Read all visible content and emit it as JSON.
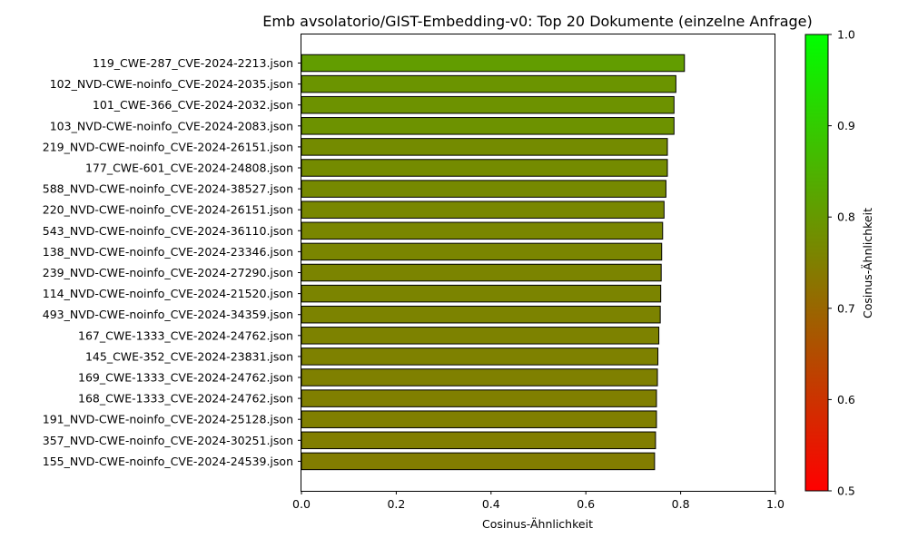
{
  "chart_data": {
    "type": "bar",
    "orientation": "horizontal",
    "title": "Emb avsolatorio/GIST-Embedding-v0: Top 20 Dokumente (einzelne Anfrage)",
    "xlabel": "Cosinus-Ähnlichkeit",
    "ylabel": "",
    "xlim": [
      0.0,
      1.0
    ],
    "x_ticks": [
      "0.0",
      "0.2",
      "0.4",
      "0.6",
      "0.8",
      "1.0"
    ],
    "grid": false,
    "categories": [
      "119_CWE-287_CVE-2024-2213.json",
      "102_NVD-CWE-noinfo_CVE-2024-2035.json",
      "101_CWE-366_CVE-2024-2032.json",
      "103_NVD-CWE-noinfo_CVE-2024-2083.json",
      "219_NVD-CWE-noinfo_CVE-2024-26151.json",
      "177_CWE-601_CVE-2024-24808.json",
      "588_NVD-CWE-noinfo_CVE-2024-38527.json",
      "220_NVD-CWE-noinfo_CVE-2024-26151.json",
      "543_NVD-CWE-noinfo_CVE-2024-36110.json",
      "138_NVD-CWE-noinfo_CVE-2024-23346.json",
      "239_NVD-CWE-noinfo_CVE-2024-27290.json",
      "114_NVD-CWE-noinfo_CVE-2024-21520.json",
      "493_NVD-CWE-noinfo_CVE-2024-34359.json",
      "167_CWE-1333_CVE-2024-24762.json",
      "145_CWE-352_CVE-2024-23831.json",
      "169_CWE-1333_CVE-2024-24762.json",
      "168_CWE-1333_CVE-2024-24762.json",
      "191_NVD-CWE-noinfo_CVE-2024-25128.json",
      "357_NVD-CWE-noinfo_CVE-2024-30251.json",
      "155_NVD-CWE-noinfo_CVE-2024-24539.json"
    ],
    "values": [
      0.808,
      0.79,
      0.786,
      0.786,
      0.772,
      0.772,
      0.769,
      0.765,
      0.762,
      0.76,
      0.759,
      0.758,
      0.757,
      0.754,
      0.752,
      0.751,
      0.749,
      0.749,
      0.747,
      0.745
    ],
    "colorbar": {
      "label": "Cosinus-Ähnlichkeit",
      "range": [
        0.5,
        1.0
      ],
      "ticks": [
        "0.5",
        "0.6",
        "0.7",
        "0.8",
        "0.9",
        "1.0"
      ],
      "color_low": "#ff0000",
      "color_high": "#00ff00"
    },
    "bar_edge_color": "#000000"
  }
}
